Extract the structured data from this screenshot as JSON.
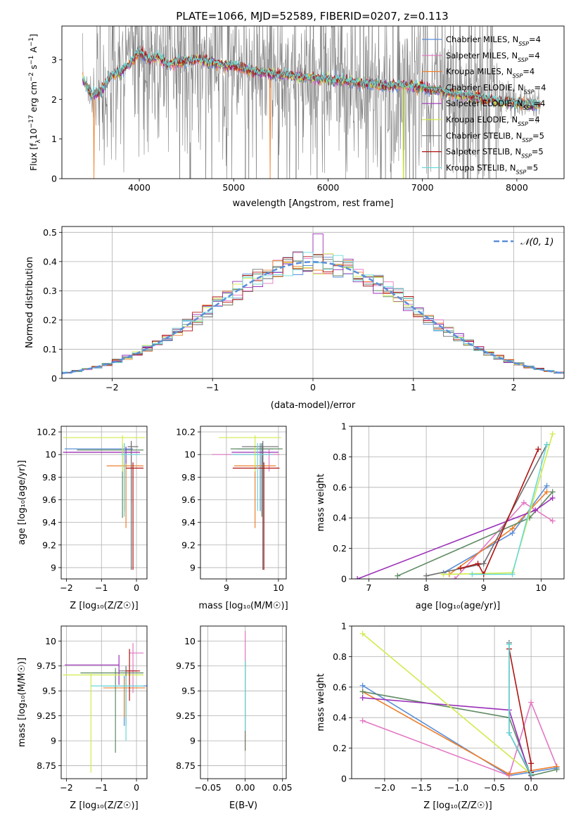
{
  "title": "PLATE=1066, MJD=52589, FIBERID=0207, z=0.113",
  "colors": {
    "Chabrier MILES": "#5b8fd9",
    "Salpeter MILES": "#e377c2",
    "Kroupa MILES": "#ee7f2d",
    "Chabrier ELODIE": "#5f8a63",
    "Salpeter ELODIE": "#9b30b8",
    "Kroupa ELODIE": "#cfec4d",
    "Chabrier STELIB": "#6e6e6e",
    "Salpeter STELIB": "#b01313",
    "Kroupa STELIB": "#68d9d9"
  },
  "legend_entries": [
    {
      "key": "Chabrier MILES",
      "base": "Chabrier MILES, N",
      "n": "=4"
    },
    {
      "key": "Salpeter MILES",
      "base": "Salpeter MILES, N",
      "n": "=4"
    },
    {
      "key": "Kroupa MILES",
      "base": "Kroupa MILES, N",
      "n": "=4"
    },
    {
      "key": "Chabrier ELODIE",
      "base": "Chabrier ELODIE, N",
      "n": "=4"
    },
    {
      "key": "Salpeter ELODIE",
      "base": "Salpeter ELODIE, N",
      "n": "=4"
    },
    {
      "key": "Kroupa ELODIE",
      "base": "Kroupa ELODIE, N",
      "n": "=4"
    },
    {
      "key": "Chabrier STELIB",
      "base": "Chabrier STELIB, N",
      "n": "=5"
    },
    {
      "key": "Salpeter STELIB",
      "base": "Salpeter STELIB, N",
      "n": "=5"
    },
    {
      "key": "Kroupa STELIB",
      "base": "Kroupa STELIB, N",
      "n": "=5"
    }
  ],
  "nssp_subscript": "SSP",
  "chart_data": [
    {
      "id": "spectrum",
      "type": "line",
      "xlabel": "wavelength [Angstrom, rest frame]",
      "ylabel": "Flux [f_λ 10^-17 erg cm^-2 s^-1 A^-1]",
      "xlim": [
        3180,
        8500
      ],
      "ylim": [
        0,
        3.85
      ],
      "xticks": [
        4000,
        5000,
        6000,
        7000,
        8000
      ],
      "yticks": [
        0,
        1,
        2,
        3
      ],
      "data_continuum": {
        "x": [
          3400,
          3500,
          3600,
          3700,
          3800,
          3900,
          4000,
          4100,
          4200,
          4300,
          4400,
          4600,
          4800,
          5000,
          5200,
          5400,
          5600,
          5800,
          6000,
          6200,
          6400,
          6600,
          6800,
          7000,
          7200,
          7400,
          7600,
          7800,
          8000,
          8200
        ],
        "y": [
          2.5,
          2.1,
          2.2,
          2.6,
          2.7,
          2.9,
          3.2,
          3.0,
          3.1,
          2.85,
          2.95,
          3.0,
          2.9,
          2.85,
          2.7,
          2.65,
          2.6,
          2.55,
          2.5,
          2.45,
          2.4,
          2.35,
          2.35,
          2.3,
          2.2,
          2.1,
          2.05,
          1.95,
          1.9,
          1.85
        ]
      },
      "data_upper_envelope": 3.85,
      "data_lower_envelope": 0
    },
    {
      "id": "residuals",
      "type": "histogram",
      "xlabel": "(data-model)/error",
      "ylabel": "Normed distribution",
      "xlim": [
        -2.5,
        2.5
      ],
      "ylim": [
        0,
        0.52
      ],
      "xticks": [
        -2,
        -1,
        0,
        1,
        2
      ],
      "yticks": [
        0.0,
        0.1,
        0.2,
        0.3,
        0.4,
        0.5
      ],
      "bin_width": 0.1,
      "gaussian_label": "𝒩(0, 1)",
      "gaussian_color": "#5b8fd9"
    },
    {
      "id": "age_vs_Z",
      "type": "errorbar",
      "xlabel": "Z [log₁₀(Z/Z☉)]",
      "ylabel": "age  [log₁₀(age/yr)]",
      "xlim": [
        -2.15,
        0.3
      ],
      "ylim": [
        8.9,
        10.25
      ],
      "xticks": [
        -2,
        -1,
        0
      ],
      "yticks": [
        9.0,
        9.2,
        9.4,
        9.6,
        9.8,
        10.0,
        10.2
      ],
      "points": [
        {
          "key": "Chabrier MILES",
          "x": -0.35,
          "y": 10.05,
          "xerr": [
            1.7,
            0.25
          ],
          "yerr": [
            0.55,
            0.05
          ]
        },
        {
          "key": "Salpeter MILES",
          "x": -0.15,
          "y": 10.02,
          "xerr": [
            1.9,
            0.25
          ],
          "yerr": [
            0.45,
            0.1
          ]
        },
        {
          "key": "Kroupa MILES",
          "x": -0.3,
          "y": 9.9,
          "xerr": [
            0.55,
            0.5
          ],
          "yerr": [
            0.55,
            0.05
          ]
        },
        {
          "key": "Chabrier ELODIE",
          "x": -0.4,
          "y": 10.04,
          "xerr": [
            1.3,
            0.6
          ],
          "yerr": [
            0.6,
            0.05
          ]
        },
        {
          "key": "Salpeter ELODIE",
          "x": -0.3,
          "y": 10.02,
          "xerr": [
            1.8,
            0.4
          ],
          "yerr": [
            0.1,
            0.05
          ]
        },
        {
          "key": "Kroupa ELODIE",
          "x": -0.4,
          "y": 10.15,
          "xerr": [
            1.7,
            0.65
          ],
          "yerr": [
            0.3,
            0.02
          ]
        },
        {
          "key": "Chabrier STELIB",
          "x": -0.15,
          "y": 10.07,
          "xerr": [
            0.1,
            0.2
          ],
          "yerr": [
            1.09,
            0.05
          ]
        },
        {
          "key": "Salpeter STELIB",
          "x": -0.1,
          "y": 9.88,
          "xerr": [
            0.2,
            0.3
          ],
          "yerr": [
            0.9,
            0.05
          ]
        },
        {
          "key": "Kroupa STELIB",
          "x": -0.35,
          "y": 10.0,
          "xerr": [
            0.1,
            0.45
          ],
          "yerr": [
            0.55,
            0.1
          ]
        }
      ]
    },
    {
      "id": "age_vs_mass",
      "type": "errorbar",
      "xlabel": "mass [log₁₀(M/M☉)]",
      "ylabel": "",
      "xlim": [
        8.5,
        10.15
      ],
      "ylim": [
        8.9,
        10.25
      ],
      "xticks": [
        9,
        10
      ],
      "yticks": [
        9.0,
        9.2,
        9.4,
        9.6,
        9.8,
        10.0,
        10.2
      ],
      "points": [
        {
          "key": "Chabrier MILES",
          "x": 9.65,
          "y": 10.05,
          "xerr": [
            0.45,
            0.25
          ],
          "yerr": [
            0.55,
            0.05
          ]
        },
        {
          "key": "Salpeter MILES",
          "x": 9.82,
          "y": 10.0,
          "xerr": [
            1.1,
            0.2
          ],
          "yerr": [
            0.15,
            0.05
          ]
        },
        {
          "key": "Kroupa MILES",
          "x": 9.55,
          "y": 9.9,
          "xerr": [
            0.4,
            0.4
          ],
          "yerr": [
            0.55,
            0.05
          ]
        },
        {
          "key": "Chabrier ELODIE",
          "x": 9.68,
          "y": 10.05,
          "xerr": [
            0.6,
            0.4
          ],
          "yerr": [
            0.6,
            0.05
          ]
        },
        {
          "key": "Salpeter ELODIE",
          "x": 9.7,
          "y": 10.02,
          "xerr": [
            0.6,
            0.3
          ],
          "yerr": [
            0.1,
            0.05
          ]
        },
        {
          "key": "Kroupa ELODIE",
          "x": 9.55,
          "y": 10.15,
          "xerr": [
            0.7,
            0.5
          ],
          "yerr": [
            0.3,
            0.02
          ]
        },
        {
          "key": "Chabrier STELIB",
          "x": 9.7,
          "y": 10.07,
          "xerr": [
            0.4,
            0.3
          ],
          "yerr": [
            1.09,
            0.05
          ]
        },
        {
          "key": "Salpeter STELIB",
          "x": 9.72,
          "y": 9.88,
          "xerr": [
            0.6,
            0.3
          ],
          "yerr": [
            0.9,
            0.05
          ]
        },
        {
          "key": "Kroupa STELIB",
          "x": 9.6,
          "y": 10.0,
          "xerr": [
            0.5,
            0.3
          ],
          "yerr": [
            0.5,
            0.1
          ]
        }
      ]
    },
    {
      "id": "weight_vs_age",
      "type": "line",
      "xlabel": "age  [log₁₀(age/yr)]",
      "ylabel": "mass weight",
      "xlim": [
        6.7,
        10.4
      ],
      "ylim": [
        0,
        1
      ],
      "xticks": [
        7,
        8,
        9,
        10
      ],
      "yticks": [
        0.0,
        0.2,
        0.4,
        0.6,
        0.8,
        1.0
      ],
      "series": [
        {
          "key": "Chabrier MILES",
          "x": [
            8.3,
            9.5,
            10.1
          ],
          "y": [
            0.04,
            0.3,
            0.61
          ]
        },
        {
          "key": "Salpeter MILES",
          "x": [
            8.5,
            9.7,
            10.2
          ],
          "y": [
            0.0,
            0.5,
            0.38
          ]
        },
        {
          "key": "Kroupa MILES",
          "x": [
            8.4,
            9.5,
            10.1
          ],
          "y": [
            0.03,
            0.33,
            0.57
          ]
        },
        {
          "key": "Chabrier ELODIE",
          "x": [
            7.5,
            9.8,
            10.2
          ],
          "y": [
            0.02,
            0.4,
            0.57
          ]
        },
        {
          "key": "Salpeter ELODIE",
          "x": [
            6.8,
            9.9,
            10.2
          ],
          "y": [
            0.0,
            0.45,
            0.53
          ]
        },
        {
          "key": "Kroupa ELODIE",
          "x": [
            8.3,
            9.5,
            10.2
          ],
          "y": [
            0.03,
            0.04,
            0.95
          ]
        },
        {
          "key": "Chabrier STELIB",
          "x": [
            8.0,
            9.0,
            10.1
          ],
          "y": [
            0.02,
            0.1,
            0.88
          ]
        },
        {
          "key": "Salpeter STELIB",
          "x": [
            8.6,
            8.9,
            9.0,
            9.95
          ],
          "y": [
            0.07,
            0.1,
            0.03,
            0.85
          ]
        },
        {
          "key": "Kroupa STELIB",
          "x": [
            8.8,
            9.5,
            10.1
          ],
          "y": [
            0.03,
            0.03,
            0.88
          ]
        }
      ]
    },
    {
      "id": "mass_vs_Z",
      "type": "errorbar",
      "xlabel": "Z [log₁₀(Z/Z☉)]",
      "ylabel": "mass [log₁₀(M/M☉)]",
      "xlim": [
        -2.15,
        0.3
      ],
      "ylim": [
        8.62,
        10.15
      ],
      "xticks": [
        -2,
        -1,
        0
      ],
      "yticks": [
        8.75,
        9.0,
        9.25,
        9.5,
        9.75,
        10.0
      ],
      "points": [
        {
          "key": "Chabrier MILES",
          "x": -0.35,
          "y": 9.55,
          "xerr": [
            0.6,
            0.65
          ],
          "yerr": [
            0.4,
            0.1
          ]
        },
        {
          "key": "Salpeter MILES",
          "x": -0.1,
          "y": 9.88,
          "xerr": [
            0.1,
            0.3
          ],
          "yerr": [
            0.4,
            0.1
          ]
        },
        {
          "key": "Kroupa MILES",
          "x": -0.35,
          "y": 9.53,
          "xerr": [
            0.6,
            0.6
          ],
          "yerr": [
            0.3,
            0.1
          ]
        },
        {
          "key": "Chabrier ELODIE",
          "x": -0.6,
          "y": 9.68,
          "xerr": [
            1.0,
            0.8
          ],
          "yerr": [
            0.8,
            0.05
          ]
        },
        {
          "key": "Salpeter ELODIE",
          "x": -0.5,
          "y": 9.76,
          "xerr": [
            1.55,
            0.0
          ],
          "yerr": [
            0.2,
            0.1
          ]
        },
        {
          "key": "Kroupa ELODIE",
          "x": -1.3,
          "y": 9.66,
          "xerr": [
            0.8,
            1.5
          ],
          "yerr": [
            0.98,
            0.02
          ]
        },
        {
          "key": "Chabrier STELIB",
          "x": -0.3,
          "y": 9.7,
          "xerr": [
            0.2,
            0.3
          ],
          "yerr": [
            0.55,
            0.05
          ]
        },
        {
          "key": "Salpeter STELIB",
          "x": -0.2,
          "y": 9.7,
          "xerr": [
            0.1,
            0.3
          ],
          "yerr": [
            0.3,
            0.22
          ]
        },
        {
          "key": "Kroupa STELIB",
          "x": -0.3,
          "y": 9.55,
          "xerr": [
            1.0,
            0.5
          ],
          "yerr": [
            0.55,
            0.1
          ]
        }
      ]
    },
    {
      "id": "mass_vs_ebv",
      "type": "errorbar",
      "xlabel": "E(B-V)",
      "ylabel": "",
      "xlim": [
        -0.06,
        0.055
      ],
      "ylim": [
        8.62,
        10.15
      ],
      "xticks": [
        -0.05,
        0.0,
        0.05
      ],
      "xtick_labels": [
        "−0.05",
        "0.00",
        "0.05"
      ],
      "yticks": [
        8.75,
        9.0,
        9.25,
        9.5,
        9.75,
        10.0
      ],
      "points": [
        {
          "key": "Salpeter MILES",
          "x": 0.0,
          "y": 9.9,
          "xerr": [
            0,
            0
          ],
          "yerr": [
            0.3,
            0.2
          ]
        },
        {
          "key": "Kroupa ELODIE",
          "x": 0.0,
          "y": 9.2,
          "xerr": [
            0,
            0
          ],
          "yerr": [
            0.3,
            0.4
          ]
        },
        {
          "key": "Chabrier STELIB",
          "x": 0.0,
          "y": 9.4,
          "xerr": [
            0,
            0
          ],
          "yerr": [
            0.5,
            0.4
          ]
        },
        {
          "key": "Kroupa STELIB",
          "x": 0.0,
          "y": 9.3,
          "xerr": [
            0,
            0
          ],
          "yerr": [
            0.2,
            0.5
          ]
        }
      ]
    },
    {
      "id": "weight_vs_Z",
      "type": "line",
      "xlabel": "Z [log₁₀(Z/Z☉)]",
      "ylabel": "mass weight",
      "xlim": [
        -2.45,
        0.45
      ],
      "ylim": [
        0,
        1
      ],
      "xticks": [
        -2.0,
        -1.5,
        -1.0,
        -0.5,
        0.0
      ],
      "xtick_labels": [
        "−2.0",
        "−1.5",
        "−1.0",
        "−0.5",
        "0.0"
      ],
      "yticks": [
        0.0,
        0.2,
        0.4,
        0.6,
        0.8,
        1.0
      ],
      "series": [
        {
          "key": "Chabrier MILES",
          "x": [
            -2.3,
            -0.3,
            0.35
          ],
          "y": [
            0.61,
            0.02,
            0.07
          ]
        },
        {
          "key": "Salpeter MILES",
          "x": [
            -2.3,
            -0.3,
            0.0,
            0.35
          ],
          "y": [
            0.38,
            0.02,
            0.5,
            0.08
          ]
        },
        {
          "key": "Kroupa MILES",
          "x": [
            -2.3,
            -0.3,
            0.35
          ],
          "y": [
            0.57,
            0.03,
            0.08
          ]
        },
        {
          "key": "Chabrier ELODIE",
          "x": [
            -2.3,
            -0.3,
            0.0,
            0.35
          ],
          "y": [
            0.57,
            0.4,
            0.02,
            0.06
          ]
        },
        {
          "key": "Salpeter ELODIE",
          "x": [
            -2.3,
            -0.3,
            0.0
          ],
          "y": [
            0.53,
            0.45,
            0.0
          ]
        },
        {
          "key": "Kroupa ELODIE",
          "x": [
            -2.3,
            0.0
          ],
          "y": [
            0.95,
            0.03
          ]
        },
        {
          "key": "Chabrier STELIB",
          "x": [
            -0.3,
            -0.3,
            0.0
          ],
          "y": [
            0.89,
            0.3,
            0.02
          ]
        },
        {
          "key": "Salpeter STELIB",
          "x": [
            -0.3,
            0.0,
            0.0
          ],
          "y": [
            0.85,
            0.1,
            0.04
          ]
        },
        {
          "key": "Kroupa STELIB",
          "x": [
            -0.3,
            -0.3,
            0.0
          ],
          "y": [
            0.88,
            0.3,
            0.03
          ]
        }
      ]
    }
  ]
}
